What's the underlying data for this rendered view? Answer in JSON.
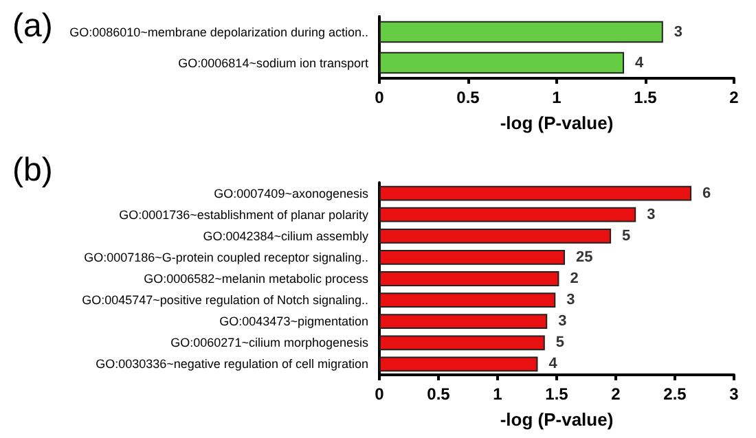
{
  "chart_data": [
    {
      "type": "bar",
      "title": "(a)",
      "orientation": "horizontal",
      "categories": [
        "GO:0086010~membrane depolarization during action..",
        "GO:0006814~sodium ion transport"
      ],
      "values": [
        1.6,
        1.38
      ],
      "color": "#66cc44",
      "annotations": [
        {
          "text": "3",
          "x": 1.6,
          "y": "GO:0086010~membrane depolarization during action.."
        },
        {
          "text": "4",
          "x": 1.38,
          "y": "GO:0006814~sodium ion transport"
        }
      ],
      "xlim": [
        0,
        2
      ],
      "xticks": [
        0,
        0.5,
        1,
        1.5,
        2
      ],
      "xlabel": "-log (P-value)",
      "grid": false
    },
    {
      "type": "bar",
      "title": "(b)",
      "orientation": "horizontal",
      "categories": [
        "GO:0007409~axonogenesis",
        "GO:0001736~establishment of planar polarity",
        "GO:0042384~cilium assembly",
        "GO:0007186~G-protein coupled receptor signaling..",
        "GO:0006582~melanin metabolic process",
        "GO:0045747~positive regulation of Notch signaling..",
        "GO:0043473~pigmentation",
        "GO:0060271~cilium morphogenesis",
        "GO:0030336~negative regulation of cell migration"
      ],
      "values": [
        2.64,
        2.17,
        1.96,
        1.57,
        1.52,
        1.49,
        1.42,
        1.4,
        1.34
      ],
      "color": "#e81010",
      "annotations": [
        {
          "text": "6",
          "x": 2.64,
          "y": "GO:0007409~axonogenesis"
        },
        {
          "text": "3",
          "x": 2.17,
          "y": "GO:0001736~establishment of planar polarity"
        },
        {
          "text": "5",
          "x": 1.96,
          "y": "GO:0042384~cilium assembly"
        },
        {
          "text": "25",
          "x": 1.57,
          "y": "GO:0007186~G-protein coupled receptor signaling.."
        },
        {
          "text": "2",
          "x": 1.52,
          "y": "GO:0006582~melanin metabolic process"
        },
        {
          "text": "3",
          "x": 1.49,
          "y": "GO:0045747~positive regulation of Notch signaling.."
        },
        {
          "text": "3",
          "x": 1.42,
          "y": "GO:0043473~pigmentation"
        },
        {
          "text": "5",
          "x": 1.4,
          "y": "GO:0060271~cilium morphogenesis"
        },
        {
          "text": "4",
          "x": 1.34,
          "y": "GO:0030336~negative regulation of cell migration"
        }
      ],
      "xlim": [
        0,
        3
      ],
      "xticks": [
        0,
        0.5,
        1,
        1.5,
        2,
        2.5,
        3
      ],
      "xlabel": "-log (P-value)",
      "grid": false
    }
  ]
}
